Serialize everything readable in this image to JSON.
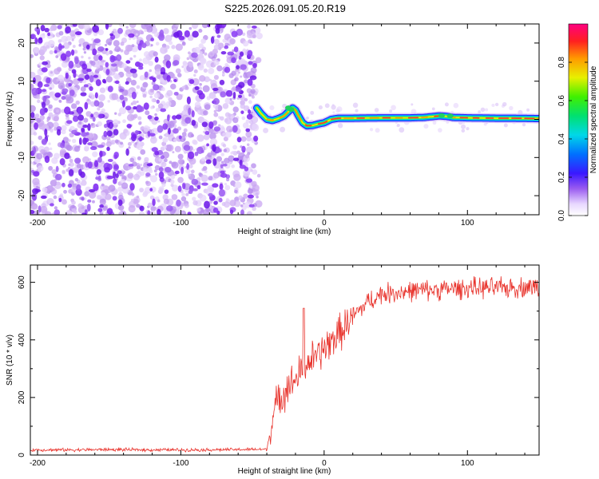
{
  "figure_title": "S225.2026.091.05.20.R19",
  "chart_data": [
    {
      "type": "heatmap",
      "panel": "spectrogram",
      "xlabel": "Height of straight line (km)",
      "ylabel": "Frequency (Hz)",
      "xlim": [
        -205,
        150
      ],
      "ylim": [
        -25,
        25
      ],
      "xticks": [
        -200,
        -100,
        0,
        100
      ],
      "yticks": [
        -20,
        -10,
        0,
        10,
        20
      ],
      "xtick_labels": [
        "-200",
        "-100",
        "0",
        "100"
      ],
      "ytick_labels": [
        "-20",
        "-10",
        "0",
        "10",
        "20"
      ],
      "noise_region_x": [
        -205,
        -47
      ],
      "signal_ridge": {
        "x": [
          -47,
          -44,
          -40,
          -36,
          -32,
          -28,
          -25,
          -22,
          -20,
          -18,
          -15,
          -12,
          -8,
          -4,
          0,
          5,
          10,
          20,
          40,
          60,
          70,
          80,
          85,
          90,
          100,
          120,
          130,
          150
        ],
        "freq": [
          3.0,
          1.5,
          0.0,
          -0.3,
          0.2,
          0.9,
          2.0,
          3.0,
          2.4,
          1.0,
          -0.9,
          -1.7,
          -1.6,
          -1.2,
          -0.9,
          0.0,
          0.3,
          0.3,
          0.4,
          0.4,
          0.5,
          0.9,
          0.8,
          0.5,
          0.4,
          0.3,
          0.3,
          0.2
        ]
      },
      "colorbar": {
        "label": "Normalized spectral amplitude",
        "range": [
          0,
          1
        ],
        "ticks": [
          0.0,
          0.2,
          0.4,
          0.6,
          0.8
        ],
        "tick_labels": [
          "0.0",
          "0.2",
          "0.4",
          "0.6",
          "0.8"
        ],
        "colormap": "rainbow-white-to-magenta"
      }
    },
    {
      "type": "line",
      "panel": "snr",
      "xlabel": "Height of straight line (km)",
      "ylabel": "SNR (10 * v/v)",
      "xlim": [
        -205,
        150
      ],
      "ylim": [
        0,
        660
      ],
      "xticks": [
        -200,
        -100,
        0,
        100
      ],
      "yticks": [
        0,
        200,
        400,
        600
      ],
      "xtick_labels": [
        "-200",
        "-100",
        "0",
        "100"
      ],
      "ytick_labels": [
        "0",
        "200",
        "400",
        "600"
      ],
      "line_color": "#e8332c",
      "series": [
        {
          "name": "SNR",
          "x": [
            -205,
            -180,
            -150,
            -120,
            -90,
            -60,
            -40,
            -35,
            -30,
            -25,
            -20,
            -15,
            -10,
            -5,
            0,
            10,
            20,
            30,
            40,
            60,
            80,
            100,
            120,
            150
          ],
          "values": [
            18,
            18,
            19,
            18,
            18,
            19,
            20,
            150,
            210,
            240,
            260,
            300,
            330,
            340,
            370,
            420,
            480,
            530,
            560,
            570,
            575,
            580,
            580,
            585
          ]
        }
      ],
      "annotations": [
        {
          "x": -14,
          "value": 510,
          "label": "spike"
        }
      ]
    }
  ]
}
